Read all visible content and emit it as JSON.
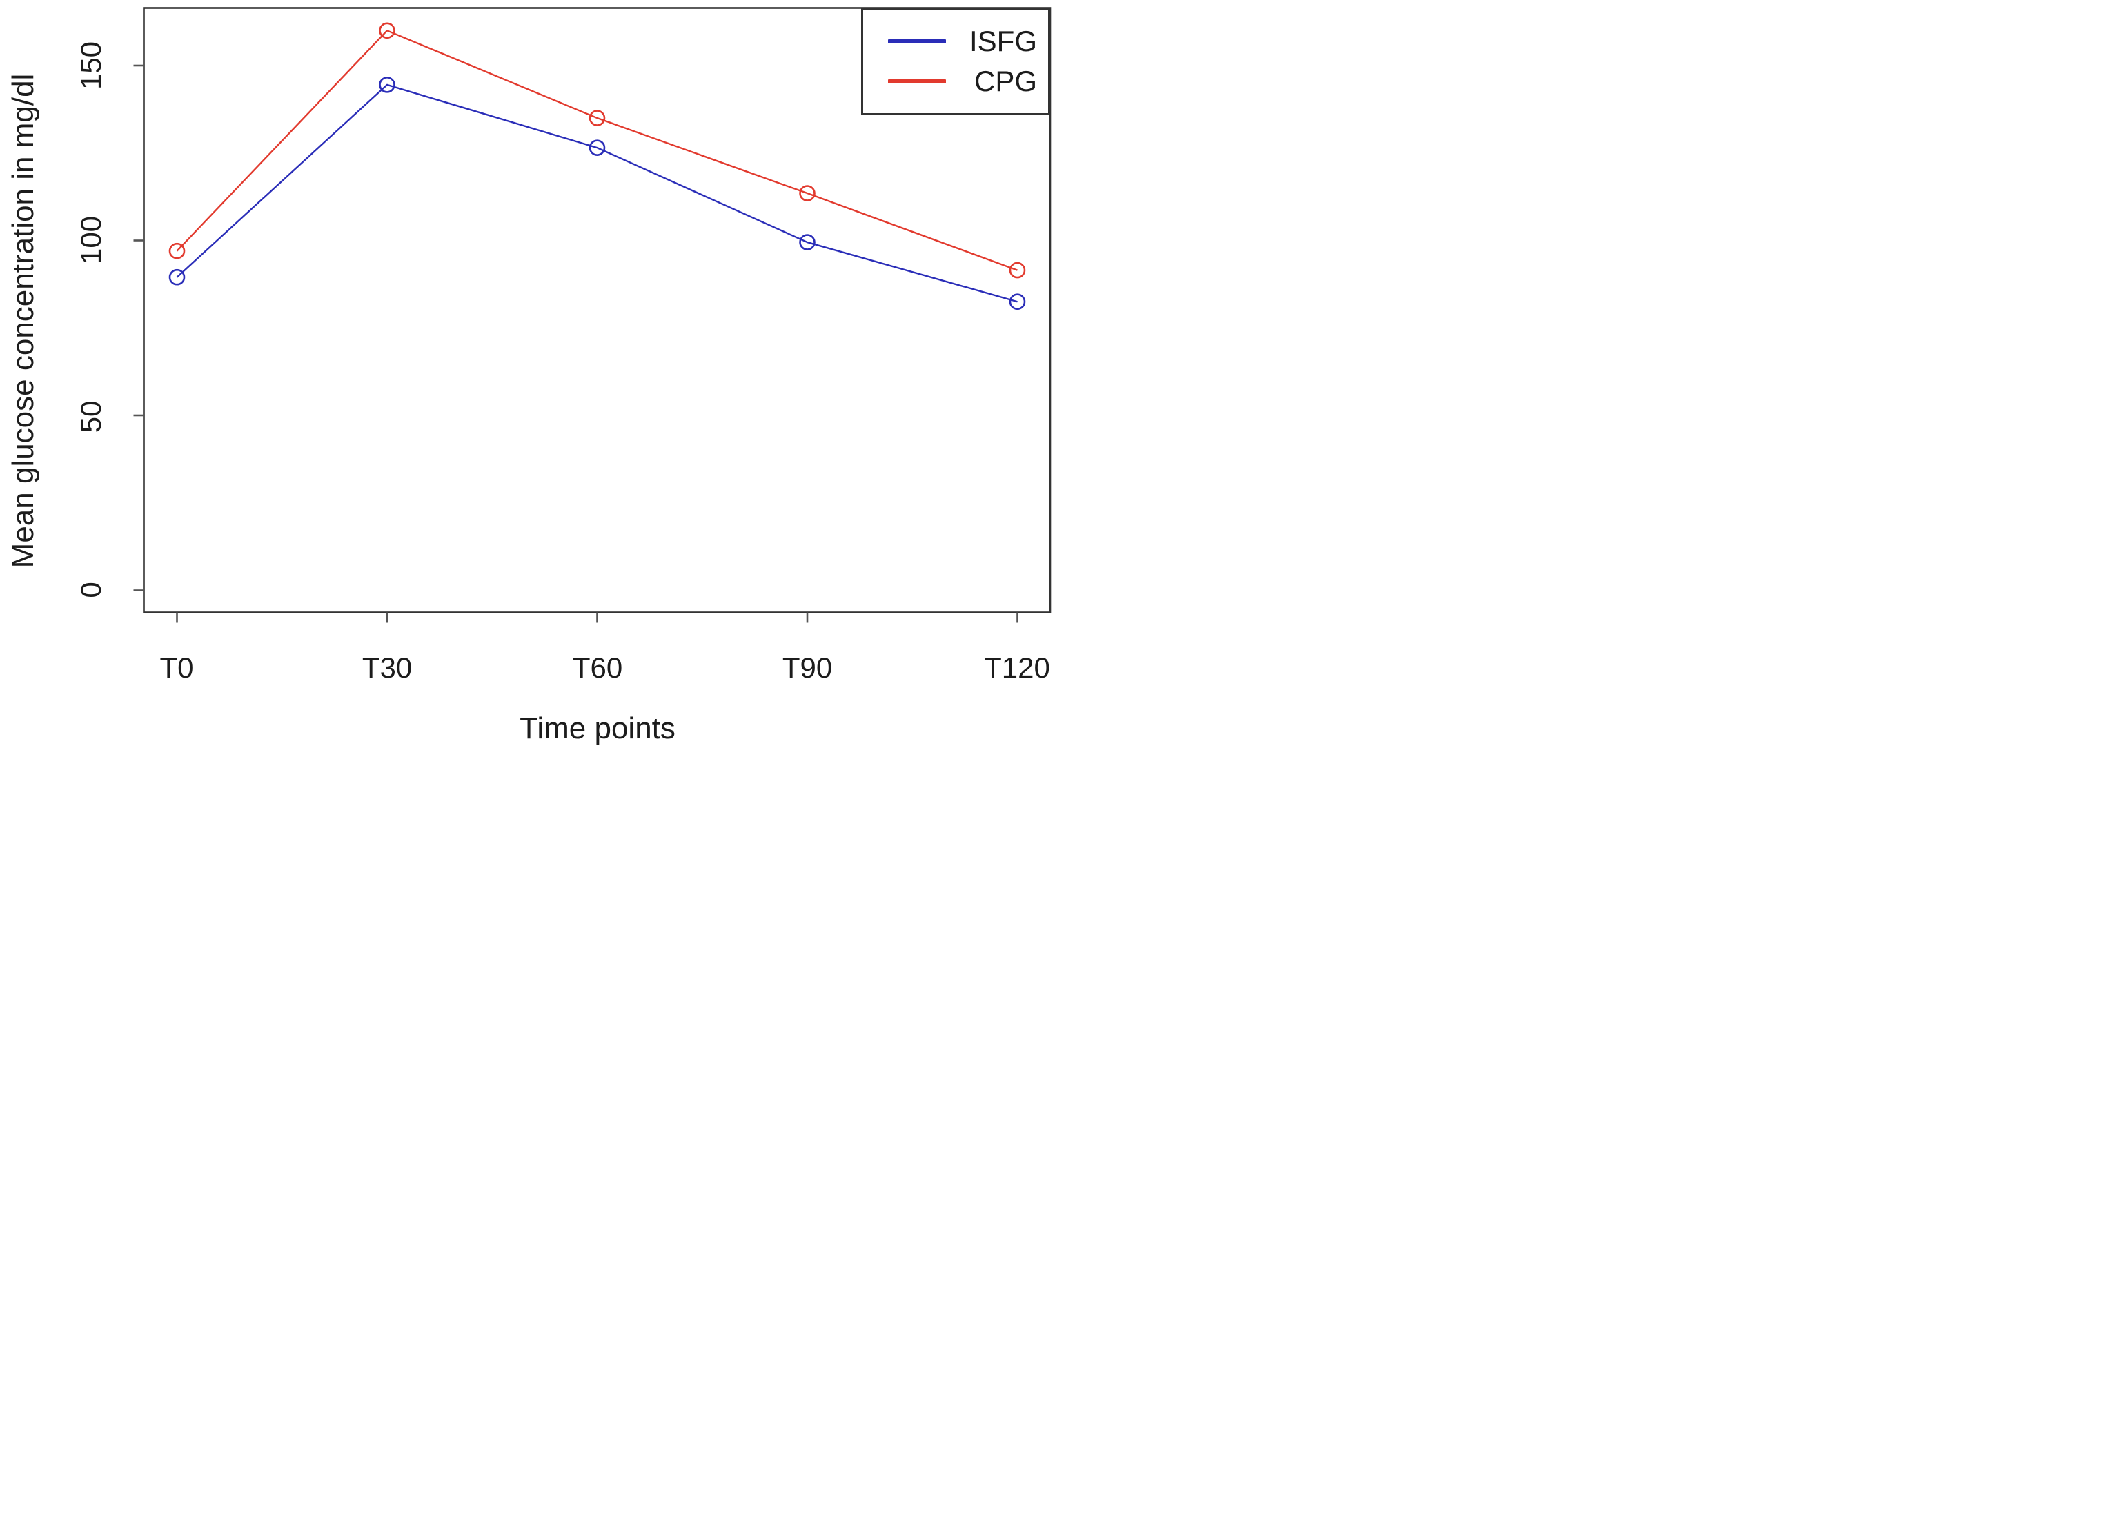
{
  "figure": {
    "background_color": "#ffffff",
    "box_color": "#333333",
    "tick_color": "#555555",
    "text_color": "#1c1c1c"
  },
  "chart_data": {
    "type": "line",
    "title": "",
    "xlabel": "Time points",
    "ylabel": "Mean glucose concentration in mg/dl",
    "categories": [
      "T0",
      "T30",
      "T60",
      "T90",
      "T120"
    ],
    "yticks": [
      "0",
      "50",
      "100",
      "150"
    ],
    "ylim": [
      -6,
      166
    ],
    "grid": false,
    "legend_position": "top-right",
    "marker": "open-circle",
    "series": [
      {
        "name": "ISFG",
        "color": "#2a2db8",
        "values": [
          89.5,
          144.5,
          126.5,
          99.5,
          82.5
        ]
      },
      {
        "name": "CPG",
        "color": "#e23a2e",
        "values": [
          97,
          160,
          135,
          113.5,
          91.5
        ]
      }
    ]
  }
}
